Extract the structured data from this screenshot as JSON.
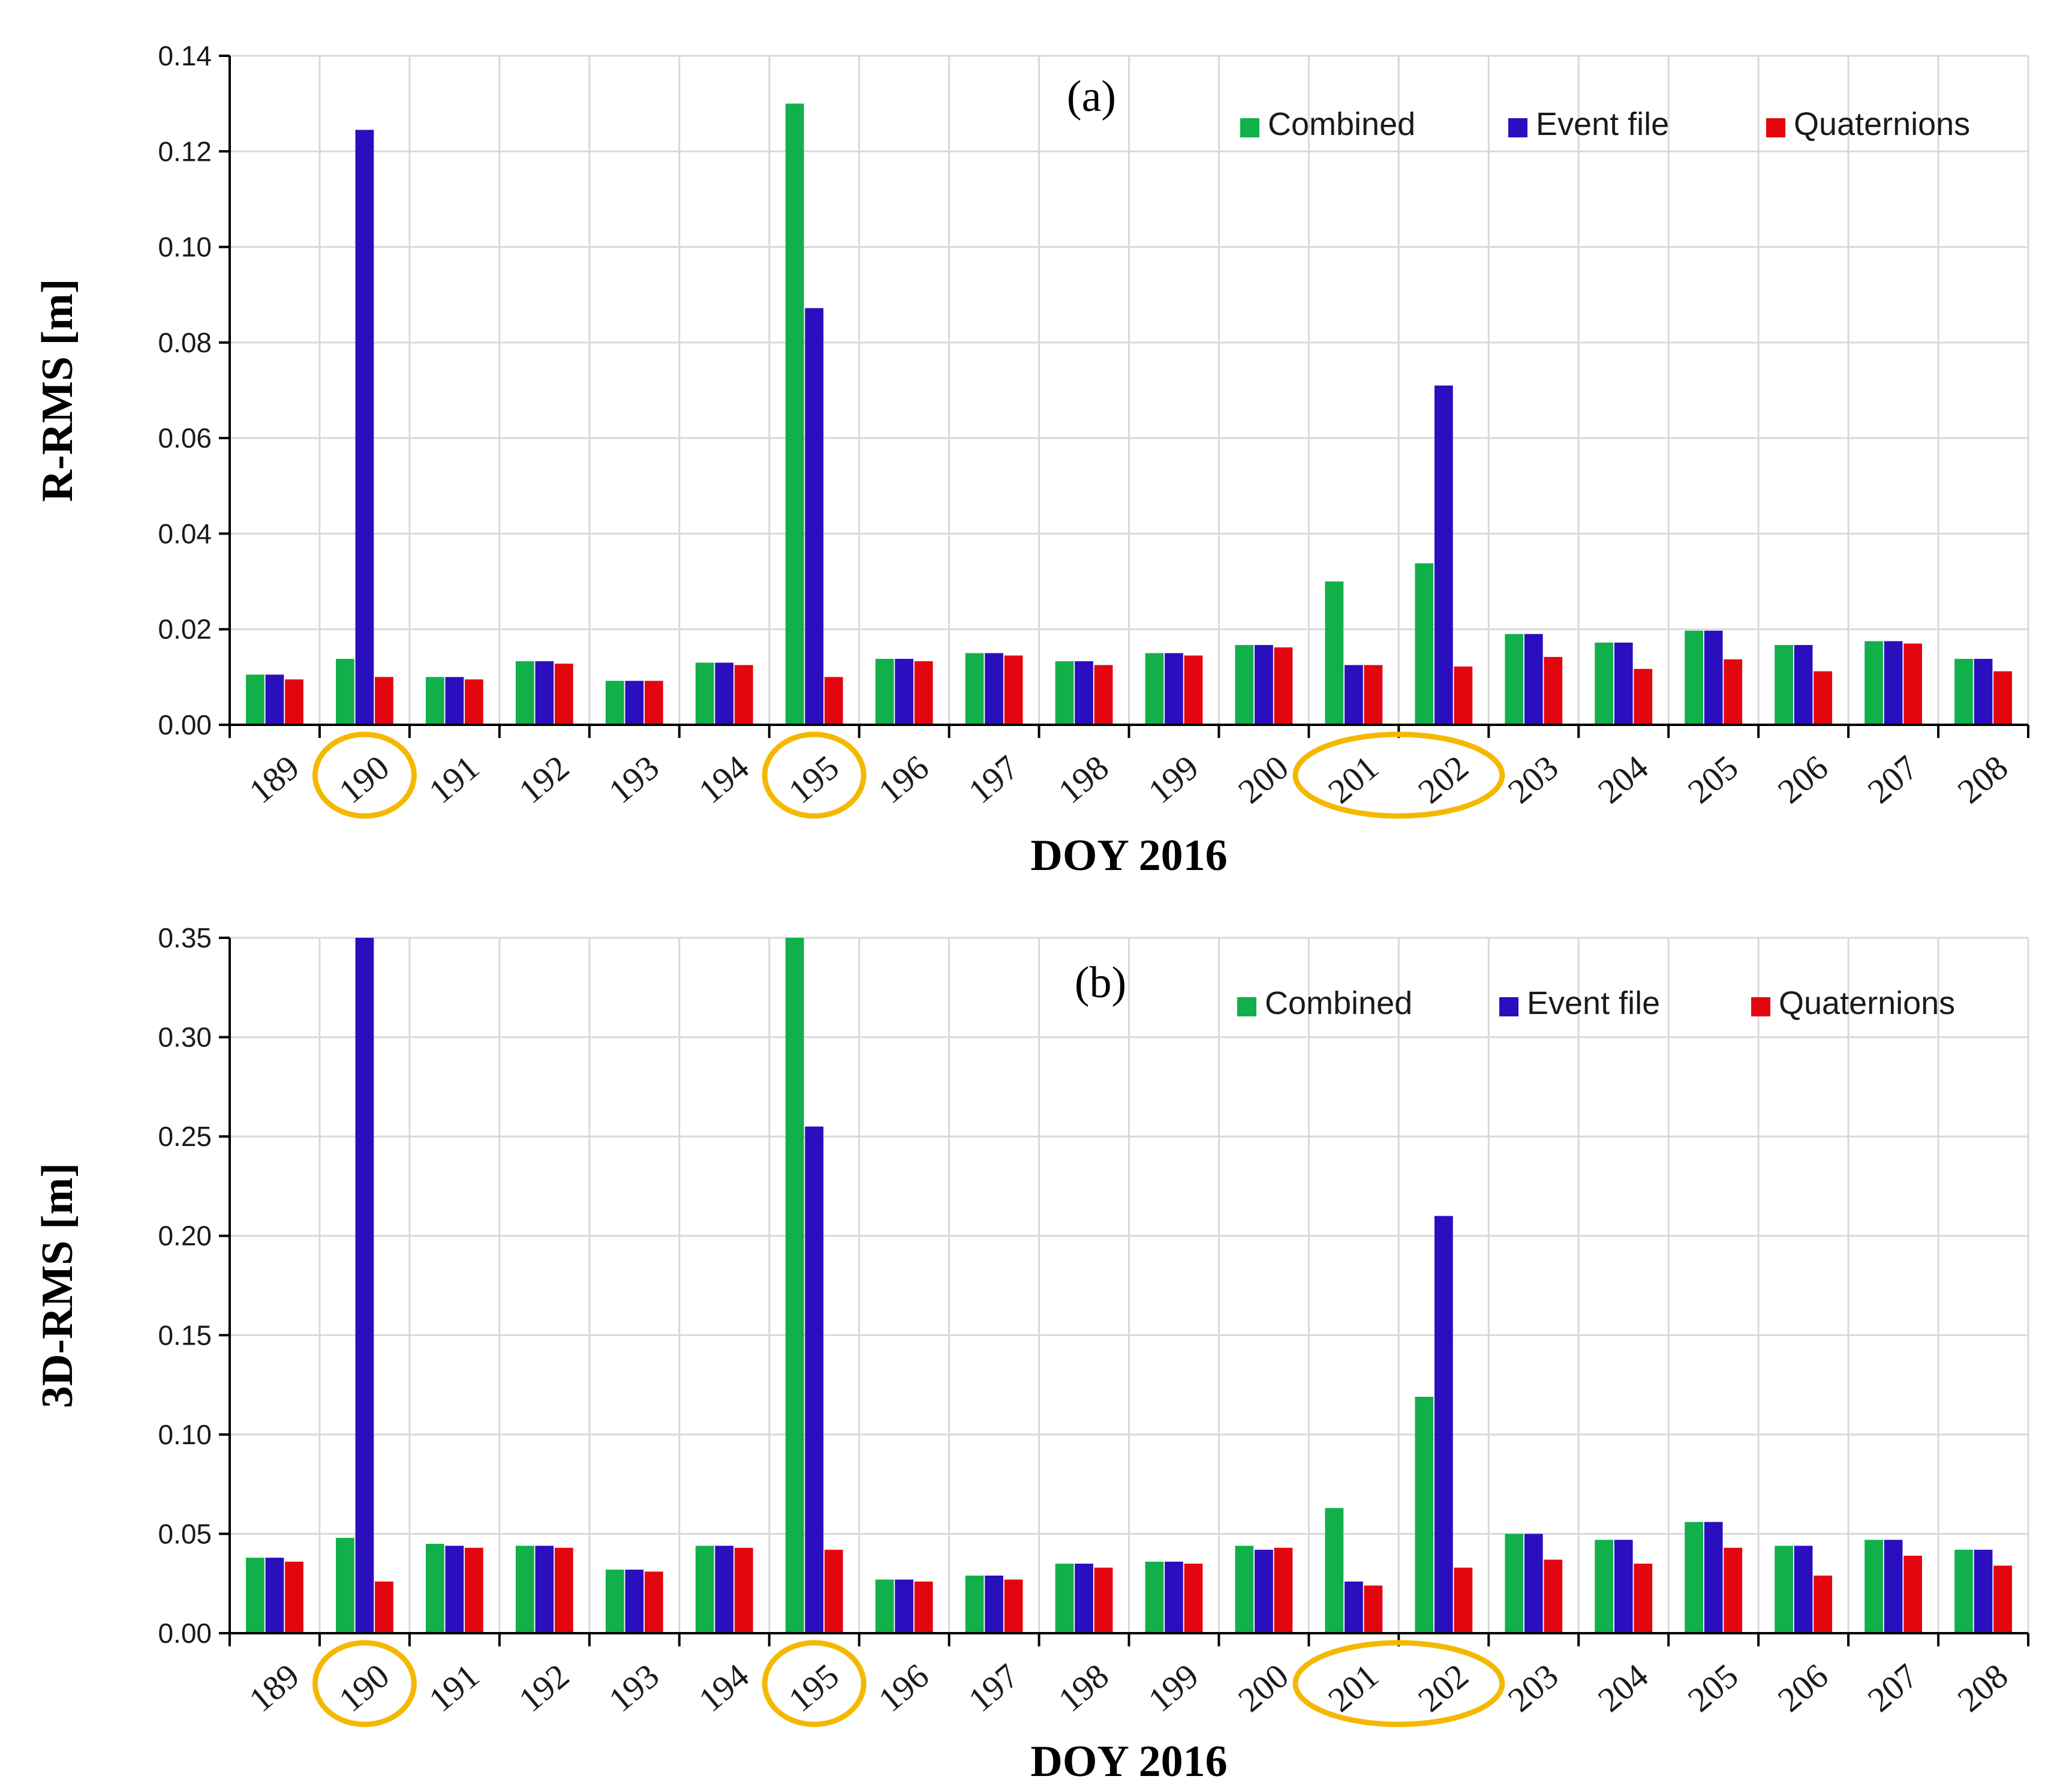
{
  "chart_data": [
    {
      "type": "bar",
      "panel_label": "(a)",
      "title": "",
      "xlabel": "DOY 2016",
      "ylabel": "R-RMS [m]",
      "ylim": [
        0,
        0.14
      ],
      "yticks": [
        "0.00",
        "0.02",
        "0.04",
        "0.06",
        "0.08",
        "0.10",
        "0.12",
        "0.14"
      ],
      "grid": true,
      "legend_position": "top-right",
      "categories": [
        "189",
        "190",
        "191",
        "192",
        "193",
        "194",
        "195",
        "196",
        "197",
        "198",
        "199",
        "200",
        "201",
        "202",
        "203",
        "204",
        "205",
        "206",
        "207",
        "208"
      ],
      "series": [
        {
          "name": "Combined",
          "color": "#12b04a",
          "values": [
            0.0105,
            0.0138,
            0.01,
            0.0133,
            0.0092,
            0.013,
            0.13,
            0.0138,
            0.015,
            0.0133,
            0.015,
            0.0167,
            0.03,
            0.0338,
            0.019,
            0.0172,
            0.0197,
            0.0167,
            0.0175,
            0.0138
          ]
        },
        {
          "name": "Event file",
          "color": "#2a0fbf",
          "values": [
            0.0105,
            0.1245,
            0.01,
            0.0133,
            0.0092,
            0.013,
            0.0872,
            0.0138,
            0.015,
            0.0133,
            0.015,
            0.0167,
            0.0125,
            0.071,
            0.019,
            0.0172,
            0.0197,
            0.0167,
            0.0175,
            0.0138
          ]
        },
        {
          "name": "Quaternions",
          "color": "#e4060f",
          "values": [
            0.0095,
            0.01,
            0.0095,
            0.0128,
            0.0092,
            0.0125,
            0.01,
            0.0133,
            0.0145,
            0.0125,
            0.0145,
            0.0162,
            0.0125,
            0.0122,
            0.0142,
            0.0117,
            0.0137,
            0.0112,
            0.017,
            0.0112
          ]
        }
      ],
      "highlighted_categories": [
        [
          "190"
        ],
        [
          "195"
        ],
        [
          "201",
          "202"
        ]
      ]
    },
    {
      "type": "bar",
      "panel_label": "(b)",
      "title": "",
      "xlabel": "DOY 2016",
      "ylabel": "3D-RMS [m]",
      "ylim": [
        0,
        0.35
      ],
      "yticks": [
        "0.00",
        "0.05",
        "0.10",
        "0.15",
        "0.20",
        "0.25",
        "0.30",
        "0.35"
      ],
      "grid": true,
      "legend_position": "top-right",
      "categories": [
        "189",
        "190",
        "191",
        "192",
        "193",
        "194",
        "195",
        "196",
        "197",
        "198",
        "199",
        "200",
        "201",
        "202",
        "203",
        "204",
        "205",
        "206",
        "207",
        "208"
      ],
      "series": [
        {
          "name": "Combined",
          "color": "#12b04a",
          "values": [
            0.038,
            0.048,
            0.045,
            0.044,
            0.032,
            0.044,
            0.35,
            0.027,
            0.029,
            0.035,
            0.036,
            0.044,
            0.063,
            0.119,
            0.05,
            0.047,
            0.056,
            0.044,
            0.047,
            0.042
          ]
        },
        {
          "name": "Event file",
          "color": "#2a0fbf",
          "values": [
            0.038,
            0.35,
            0.044,
            0.044,
            0.032,
            0.044,
            0.255,
            0.027,
            0.029,
            0.035,
            0.036,
            0.042,
            0.026,
            0.21,
            0.05,
            0.047,
            0.056,
            0.044,
            0.047,
            0.042
          ]
        },
        {
          "name": "Quaternions",
          "color": "#e4060f",
          "values": [
            0.036,
            0.026,
            0.043,
            0.043,
            0.031,
            0.043,
            0.042,
            0.026,
            0.027,
            0.033,
            0.035,
            0.043,
            0.024,
            0.033,
            0.037,
            0.035,
            0.043,
            0.029,
            0.039,
            0.034
          ]
        }
      ],
      "highlighted_categories": [
        [
          "190"
        ],
        [
          "195"
        ],
        [
          "201",
          "202"
        ]
      ]
    }
  ]
}
